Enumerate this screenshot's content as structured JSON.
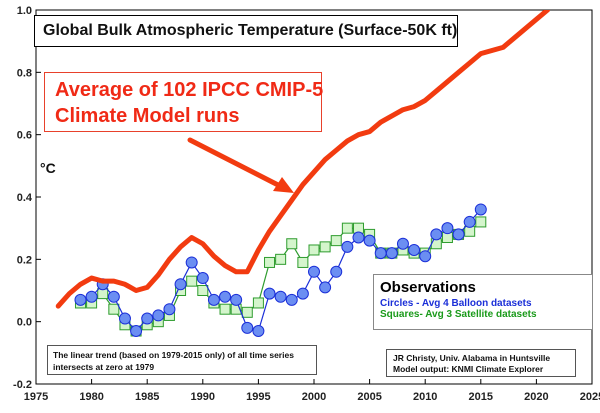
{
  "title": "Global Bulk Atmospheric Temperature (Surface-50K ft)",
  "model_label_line1": "Average of 102 IPCC CMIP-5",
  "model_label_line2": "Climate Model runs",
  "unit_label": "°C",
  "legend": {
    "title": "Observations",
    "circles": "Circles - Avg 4 Balloon datasets",
    "squares": "Squares- Avg 3 Satellite datasets"
  },
  "trend_note": "The linear trend (based on 1979-2015 only) of all time series intersects at zero at 1979",
  "credit_line1": "JR Christy, Univ. Alabama in Huntsville",
  "credit_line2": "Model output: KNMI Climate Explorer",
  "colors": {
    "model": "#f23b10",
    "balloon_fill": "#6b8ef2",
    "balloon_line": "#1b2fd8",
    "satellite_fill": "#d4f5cc",
    "satellite_line": "#2e9c2e",
    "arrow": "#f23b10"
  },
  "chart_data": {
    "type": "line",
    "xlim": [
      1975,
      2025
    ],
    "ylim": [
      -0.2,
      1.0
    ],
    "x_ticks": [
      "1975",
      "1980",
      "1985",
      "1990",
      "1995",
      "2000",
      "2005",
      "2010",
      "2015",
      "2020",
      "2025"
    ],
    "y_ticks": [
      "1.0",
      "0.8",
      "0.6",
      "0.4",
      "0.2",
      "0.0",
      "-0.2"
    ],
    "grid": false,
    "series": [
      {
        "name": "Average of 102 IPCC CMIP-5 Climate Model runs",
        "style": "thick-line",
        "x": [
          1977,
          1978,
          1979,
          1980,
          1981,
          1982,
          1983,
          1984,
          1985,
          1986,
          1987,
          1988,
          1989,
          1990,
          1991,
          1992,
          1993,
          1994,
          1995,
          1996,
          1997,
          1998,
          1999,
          2000,
          2001,
          2002,
          2003,
          2004,
          2005,
          2006,
          2007,
          2008,
          2009,
          2010,
          2011,
          2012,
          2013,
          2014,
          2015,
          2016,
          2017,
          2018,
          2019,
          2020,
          2021
        ],
        "y": [
          0.05,
          0.09,
          0.12,
          0.14,
          0.13,
          0.13,
          0.12,
          0.1,
          0.11,
          0.15,
          0.2,
          0.24,
          0.27,
          0.25,
          0.21,
          0.18,
          0.16,
          0.16,
          0.23,
          0.29,
          0.34,
          0.39,
          0.44,
          0.48,
          0.52,
          0.55,
          0.58,
          0.6,
          0.61,
          0.64,
          0.66,
          0.68,
          0.69,
          0.71,
          0.74,
          0.77,
          0.8,
          0.83,
          0.86,
          0.87,
          0.88,
          0.91,
          0.94,
          0.97,
          1.0
        ]
      },
      {
        "name": "Circles - Avg 4 Balloon datasets",
        "style": "circles",
        "x": [
          1979,
          1980,
          1981,
          1982,
          1983,
          1984,
          1985,
          1986,
          1987,
          1988,
          1989,
          1990,
          1991,
          1992,
          1993,
          1994,
          1995,
          1996,
          1997,
          1998,
          1999,
          2000,
          2001,
          2002,
          2003,
          2004,
          2005,
          2006,
          2007,
          2008,
          2009,
          2010,
          2011,
          2012,
          2013,
          2014,
          2015
        ],
        "y": [
          0.07,
          0.08,
          0.12,
          0.08,
          0.01,
          -0.03,
          0.01,
          0.02,
          0.04,
          0.12,
          0.19,
          0.14,
          0.07,
          0.08,
          0.07,
          -0.02,
          -0.03,
          0.09,
          0.08,
          0.07,
          0.09,
          0.16,
          0.11,
          0.16,
          0.24,
          0.27,
          0.26,
          0.22,
          0.22,
          0.25,
          0.23,
          0.21,
          0.28,
          0.3,
          0.28,
          0.32,
          0.36
        ]
      },
      {
        "name": "Squares- Avg 3 Satellite datasets",
        "style": "squares",
        "x": [
          1979,
          1980,
          1981,
          1982,
          1983,
          1984,
          1985,
          1986,
          1987,
          1988,
          1989,
          1990,
          1991,
          1992,
          1993,
          1994,
          1995,
          1996,
          1997,
          1998,
          1999,
          2000,
          2001,
          2002,
          2003,
          2004,
          2005,
          2006,
          2007,
          2008,
          2009,
          2010,
          2011,
          2012,
          2013,
          2014,
          2015
        ],
        "y": [
          0.06,
          0.06,
          0.09,
          0.04,
          -0.01,
          -0.03,
          -0.01,
          0.0,
          0.02,
          0.1,
          0.13,
          0.1,
          0.06,
          0.04,
          0.04,
          0.03,
          0.06,
          0.19,
          0.2,
          0.25,
          0.19,
          0.23,
          0.24,
          0.26,
          0.3,
          0.3,
          0.28,
          0.22,
          0.22,
          0.23,
          0.22,
          0.22,
          0.25,
          0.27,
          0.28,
          0.29,
          0.32
        ]
      }
    ]
  }
}
